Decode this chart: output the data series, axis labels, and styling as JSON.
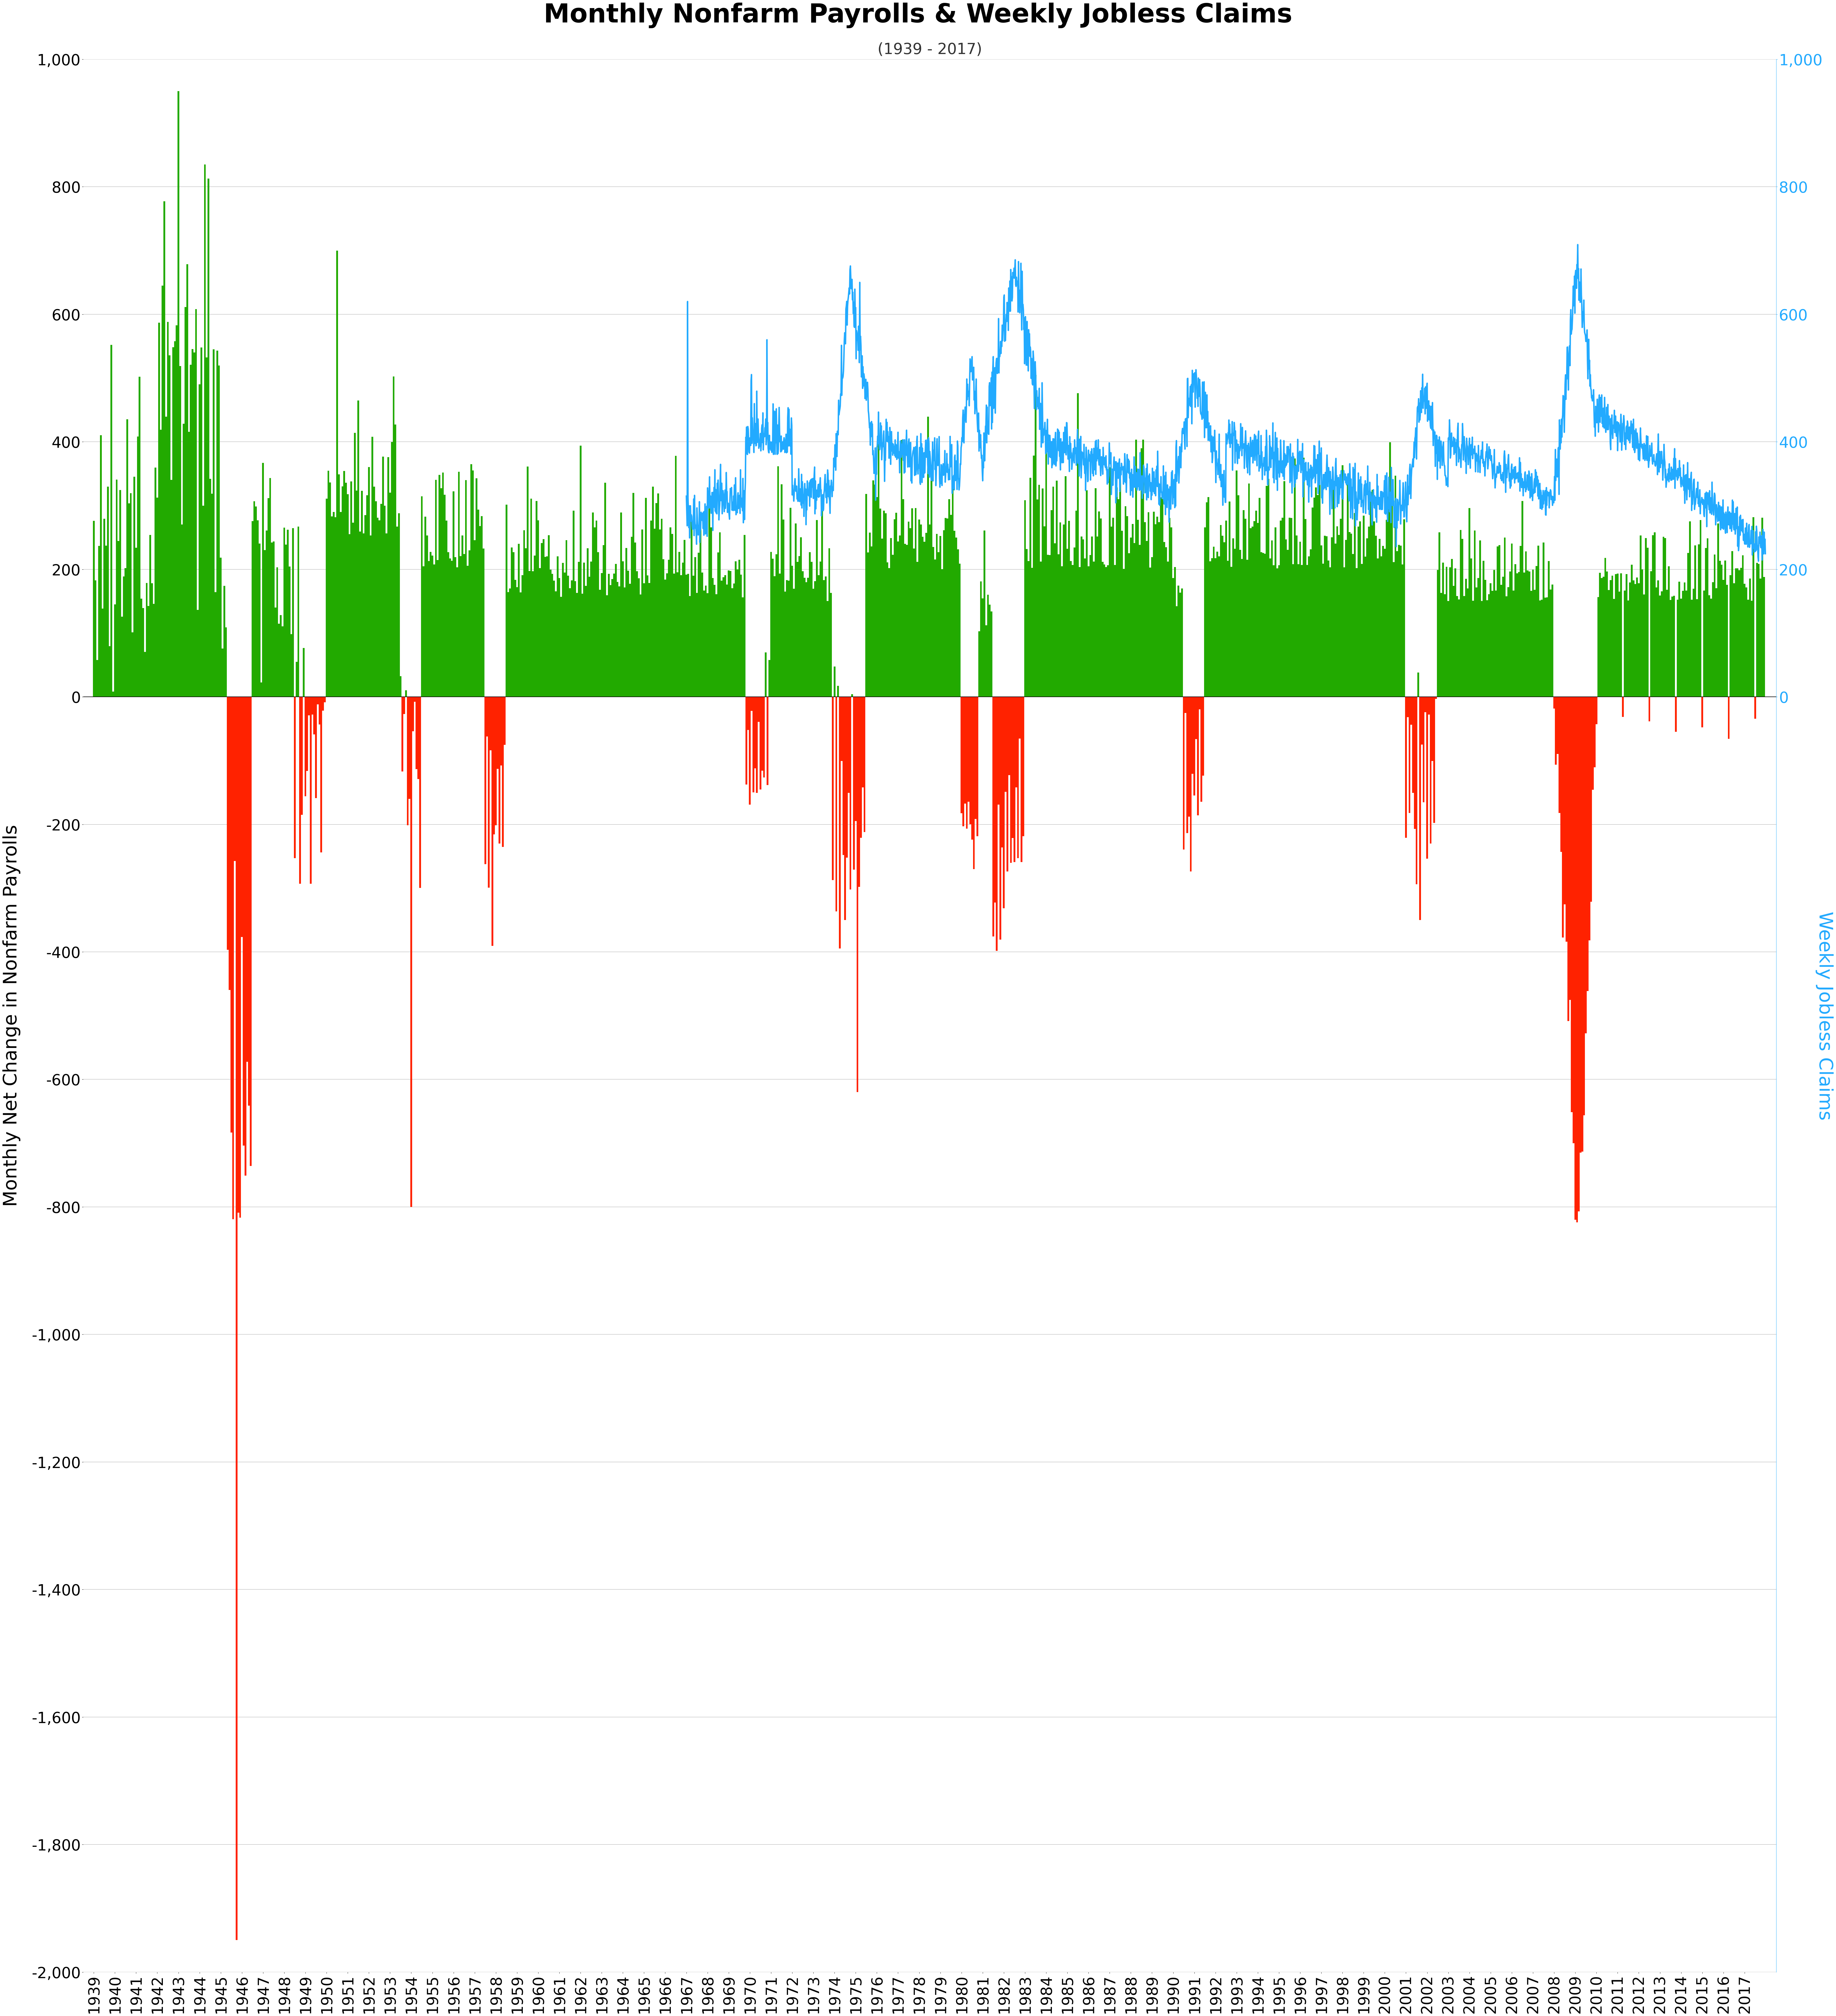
{
  "title": "Monthly Nonfarm Payrolls & Weekly Jobless Claims",
  "subtitle": "(1939 - 2017)",
  "ylabel_left": "Monthly Net Change in Nonfarm Payrolls",
  "ylabel_right": "Weekly Jobless Claims",
  "ylim_left": [
    -2000,
    1000
  ],
  "ylim_right": [
    -2000,
    1000
  ],
  "yticks_left": [
    -2000,
    -1800,
    -1600,
    -1400,
    -1200,
    -1000,
    -800,
    -600,
    -400,
    -200,
    0,
    200,
    400,
    600,
    800,
    1000
  ],
  "yticks_right": [
    0,
    200,
    400,
    600,
    800,
    1000
  ],
  "color_positive": "#22AA00",
  "color_negative": "#FF2200",
  "color_line": "#22AAFF",
  "background_color": "#FFFFFF",
  "grid_color": "#CCCCCC",
  "title_fontsize": 72,
  "subtitle_fontsize": 42,
  "axis_label_fontsize": 52,
  "tick_fontsize": 42,
  "year_start": 1939,
  "year_end": 2017
}
